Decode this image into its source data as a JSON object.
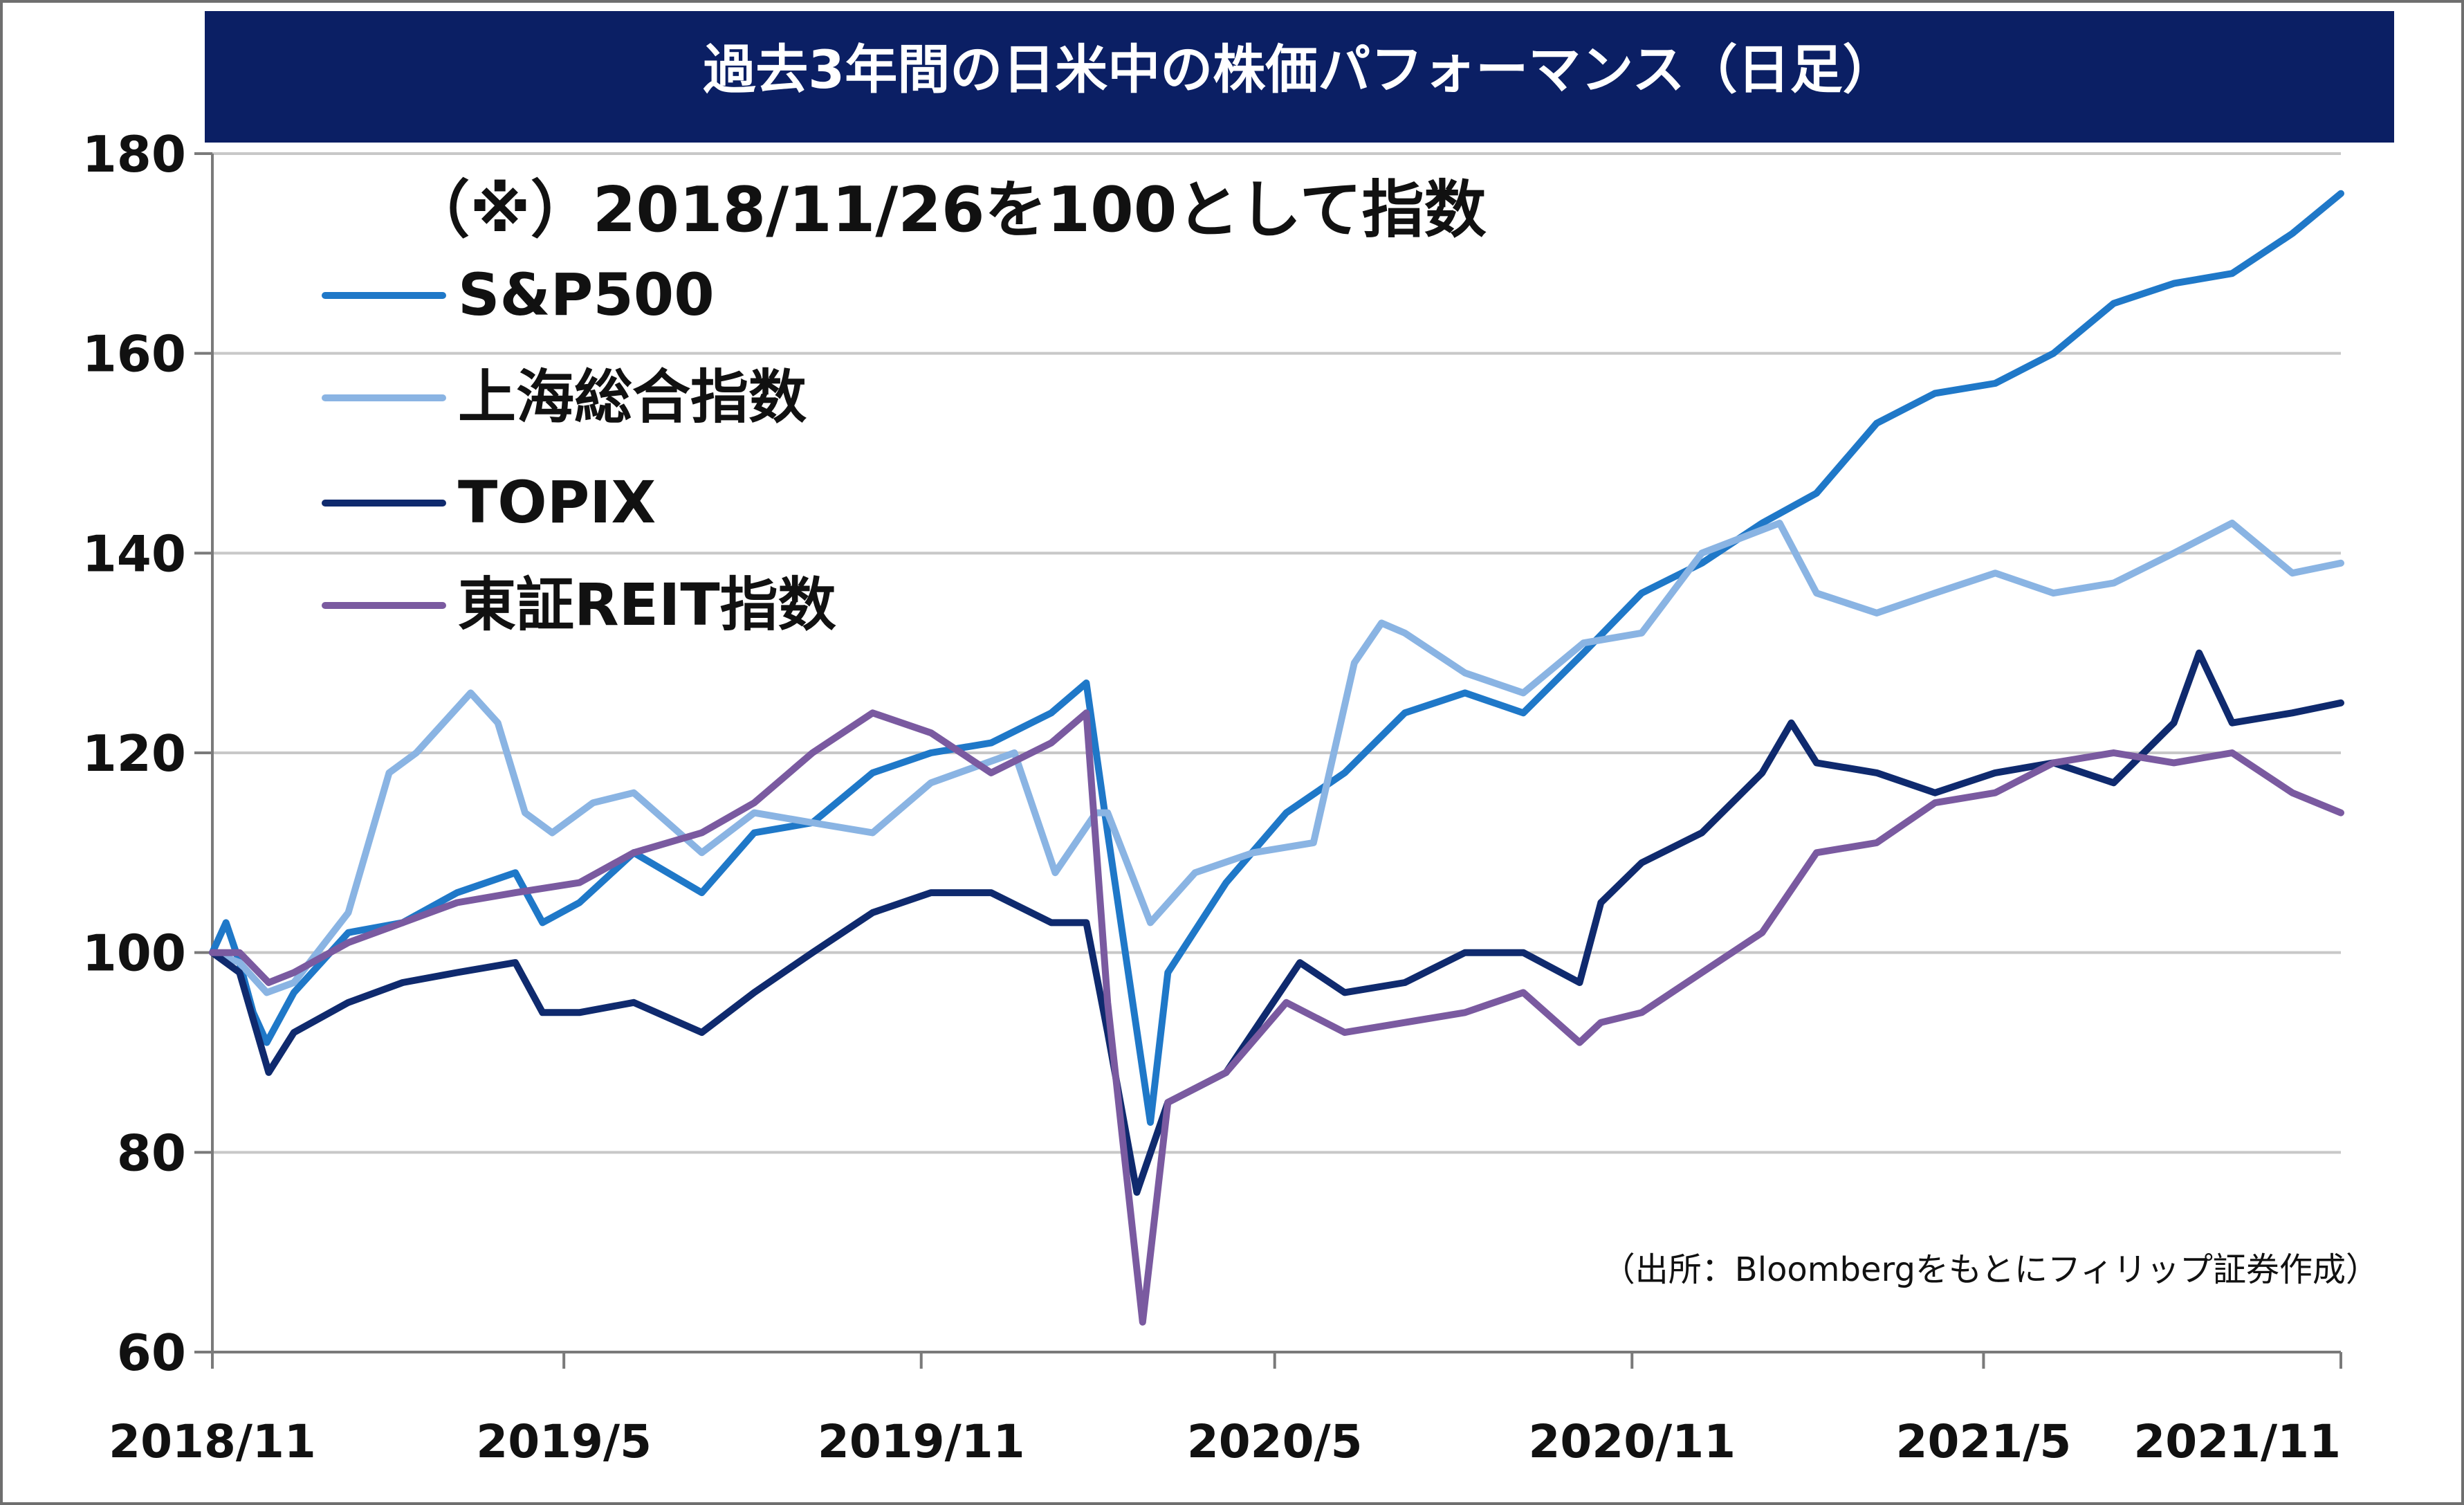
{
  "chart_data": {
    "type": "line",
    "title": "過去3年間の日米中の株価パフォーマンス（日足）",
    "subtitle": "（※）2018/11/26を100として指数",
    "source": "（出所：Bloombergをもとにフィリップ証券作成）",
    "xlabel": "",
    "ylabel": "",
    "ylim": [
      60,
      180
    ],
    "xlim": [
      "2018/11",
      "2021/11"
    ],
    "y_ticks": [
      "60",
      "80",
      "100",
      "120",
      "140",
      "160",
      "180"
    ],
    "x_ticks": [
      "2018/11",
      "2019/5",
      "2019/11",
      "2020/5",
      "2020/11",
      "2021/5",
      "2021/11"
    ],
    "grid": true,
    "legend_position": "upper-left",
    "series": [
      {
        "name": "S&P500",
        "color": "#1f78c8",
        "x": [
          "2018/11/26",
          "2018/12/3",
          "2018/12/10",
          "2018/12/17",
          "2018/12/24",
          "2019/1/7",
          "2019/1/21",
          "2019/2/4",
          "2019/3/4",
          "2019/4/1",
          "2019/5/1",
          "2019/5/15",
          "2019/6/3",
          "2019/7/1",
          "2019/8/5",
          "2019/9/1",
          "2019/10/1",
          "2019/11/1",
          "2019/12/1",
          "2020/1/1",
          "2020/2/1",
          "2020/2/19",
          "2020/3/1",
          "2020/3/23",
          "2020/4/1",
          "2020/5/1",
          "2020/6/1",
          "2020/7/1",
          "2020/8/1",
          "2020/9/1",
          "2020/10/1",
          "2020/11/1",
          "2020/12/1",
          "2021/1/1",
          "2021/2/1",
          "2021/3/1",
          "2021/4/1",
          "2021/5/1",
          "2021/6/1",
          "2021/7/1",
          "2021/8/1",
          "2021/9/1",
          "2021/10/1",
          "2021/11/1",
          "2021/11/26"
        ],
        "values": [
          100,
          103,
          99,
          94,
          91,
          96,
          99,
          102,
          103,
          106,
          108,
          103,
          105,
          110,
          106,
          112,
          113,
          118,
          120,
          121,
          124,
          127,
          112,
          83,
          98,
          107,
          114,
          118,
          124,
          126,
          124,
          130,
          136,
          139,
          143,
          146,
          153,
          156,
          157,
          160,
          165,
          167,
          168,
          172,
          176
        ]
      },
      {
        "name": "上海総合指数",
        "color": "#8ab4e3",
        "x": [
          "2018/11/26",
          "2018/12/10",
          "2018/12/24",
          "2019/1/7",
          "2019/2/4",
          "2019/2/25",
          "2019/3/11",
          "2019/4/8",
          "2019/4/22",
          "2019/5/6",
          "2019/5/20",
          "2019/6/10",
          "2019/7/1",
          "2019/8/5",
          "2019/9/1",
          "2019/10/1",
          "2019/11/1",
          "2019/12/1",
          "2020/1/13",
          "2020/2/3",
          "2020/2/24",
          "2020/3/1",
          "2020/3/23",
          "2020/4/15",
          "2020/5/15",
          "2020/6/15",
          "2020/7/6",
          "2020/7/20",
          "2020/8/1",
          "2020/9/1",
          "2020/10/1",
          "2020/11/1",
          "2020/12/1",
          "2021/1/1",
          "2021/2/10",
          "2021/3/1",
          "2021/4/1",
          "2021/5/1",
          "2021/6/1",
          "2021/7/1",
          "2021/8/1",
          "2021/9/1",
          "2021/10/1",
          "2021/11/1",
          "2021/11/26"
        ],
        "values": [
          100,
          99,
          96,
          97,
          104,
          118,
          120,
          126,
          123,
          114,
          112,
          115,
          116,
          110,
          114,
          113,
          112,
          117,
          120,
          108,
          114,
          114,
          103,
          108,
          110,
          111,
          129,
          133,
          132,
          128,
          126,
          131,
          132,
          140,
          143,
          136,
          134,
          136,
          138,
          136,
          137,
          140,
          143,
          138,
          139
        ]
      },
      {
        "name": "TOPIX",
        "color": "#0f2a6e",
        "x": [
          "2018/11/26",
          "2018/12/10",
          "2018/12/25",
          "2019/1/7",
          "2019/2/4",
          "2019/3/4",
          "2019/4/1",
          "2019/5/1",
          "2019/5/15",
          "2019/6/3",
          "2019/7/1",
          "2019/8/5",
          "2019/9/1",
          "2019/10/1",
          "2019/11/1",
          "2019/12/1",
          "2020/1/1",
          "2020/2/1",
          "2020/2/19",
          "2020/3/1",
          "2020/3/16",
          "2020/4/1",
          "2020/5/1",
          "2020/6/8",
          "2020/7/1",
          "2020/8/1",
          "2020/9/1",
          "2020/10/1",
          "2020/10/30",
          "2020/11/10",
          "2020/12/1",
          "2021/1/1",
          "2021/2/1",
          "2021/2/16",
          "2021/3/1",
          "2021/4/1",
          "2021/5/1",
          "2021/6/1",
          "2021/7/1",
          "2021/8/1",
          "2021/9/1",
          "2021/9/14",
          "2021/10/1",
          "2021/11/1",
          "2021/11/26"
        ],
        "values": [
          100,
          98,
          88,
          92,
          95,
          97,
          98,
          99,
          94,
          94,
          95,
          92,
          96,
          100,
          104,
          106,
          106,
          103,
          103,
          92,
          76,
          85,
          88,
          99,
          96,
          97,
          100,
          100,
          97,
          105,
          109,
          112,
          118,
          123,
          119,
          118,
          116,
          118,
          119,
          117,
          123,
          130,
          123,
          124,
          125
        ]
      },
      {
        "name": "東証REIT指数",
        "color": "#7a5aa0",
        "x": [
          "2018/11/26",
          "2018/12/10",
          "2018/12/25",
          "2019/1/7",
          "2019/2/4",
          "2019/3/4",
          "2019/4/1",
          "2019/5/1",
          "2019/6/3",
          "2019/7/1",
          "2019/8/5",
          "2019/9/1",
          "2019/10/1",
          "2019/11/1",
          "2019/12/1",
          "2020/1/1",
          "2020/2/1",
          "2020/2/19",
          "2020/3/1",
          "2020/3/19",
          "2020/4/1",
          "2020/5/1",
          "2020/6/1",
          "2020/7/1",
          "2020/8/1",
          "2020/9/1",
          "2020/10/1",
          "2020/10/30",
          "2020/11/10",
          "2020/12/1",
          "2021/1/1",
          "2021/2/1",
          "2021/3/1",
          "2021/4/1",
          "2021/5/1",
          "2021/6/1",
          "2021/7/1",
          "2021/8/1",
          "2021/9/1",
          "2021/10/1",
          "2021/11/1",
          "2021/11/26"
        ],
        "values": [
          100,
          100,
          97,
          98,
          101,
          103,
          105,
          106,
          107,
          110,
          112,
          115,
          120,
          124,
          122,
          118,
          121,
          124,
          95,
          63,
          85,
          88,
          95,
          92,
          93,
          94,
          96,
          91,
          93,
          94,
          98,
          102,
          110,
          111,
          115,
          116,
          119,
          120,
          119,
          120,
          116,
          114
        ]
      }
    ]
  }
}
